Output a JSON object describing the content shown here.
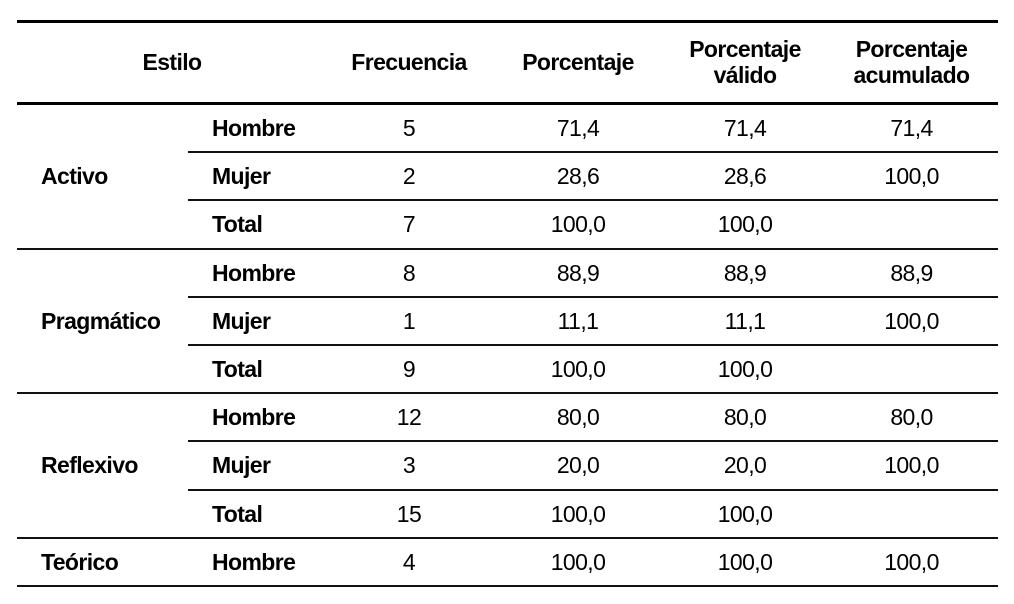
{
  "headers": {
    "estilo": "Estilo",
    "frecuencia": "Frecuencia",
    "porcentaje": "Porcentaje",
    "porcentaje_valido_1": "Porcentaje",
    "porcentaje_valido_2": "válido",
    "porcentaje_acumulado_1": "Porcentaje",
    "porcentaje_acumulado_2": "acumulado"
  },
  "groups": [
    {
      "estilo": "Activo",
      "rows": [
        {
          "sexo": "Hombre",
          "frecuencia": "5",
          "porcentaje": "71,4",
          "valido": "71,4",
          "acumulado": "71,4"
        },
        {
          "sexo": "Mujer",
          "frecuencia": "2",
          "porcentaje": "28,6",
          "valido": "28,6",
          "acumulado": "100,0"
        },
        {
          "sexo": "Total",
          "frecuencia": "7",
          "porcentaje": "100,0",
          "valido": "100,0",
          "acumulado": ""
        }
      ]
    },
    {
      "estilo": "Pragmático",
      "rows": [
        {
          "sexo": "Hombre",
          "frecuencia": "8",
          "porcentaje": "88,9",
          "valido": "88,9",
          "acumulado": "88,9"
        },
        {
          "sexo": "Mujer",
          "frecuencia": "1",
          "porcentaje": "11,1",
          "valido": "11,1",
          "acumulado": "100,0"
        },
        {
          "sexo": "Total",
          "frecuencia": "9",
          "porcentaje": "100,0",
          "valido": "100,0",
          "acumulado": ""
        }
      ]
    },
    {
      "estilo": "Reflexivo",
      "rows": [
        {
          "sexo": "Hombre",
          "frecuencia": "12",
          "porcentaje": "80,0",
          "valido": "80,0",
          "acumulado": "80,0"
        },
        {
          "sexo": "Mujer",
          "frecuencia": "3",
          "porcentaje": "20,0",
          "valido": "20,0",
          "acumulado": "100,0"
        },
        {
          "sexo": "Total",
          "frecuencia": "15",
          "porcentaje": "100,0",
          "valido": "100,0",
          "acumulado": ""
        }
      ]
    },
    {
      "estilo": "Teórico",
      "rows": [
        {
          "sexo": "Hombre",
          "frecuencia": "4",
          "porcentaje": "100,0",
          "valido": "100,0",
          "acumulado": "100,0"
        }
      ]
    }
  ]
}
